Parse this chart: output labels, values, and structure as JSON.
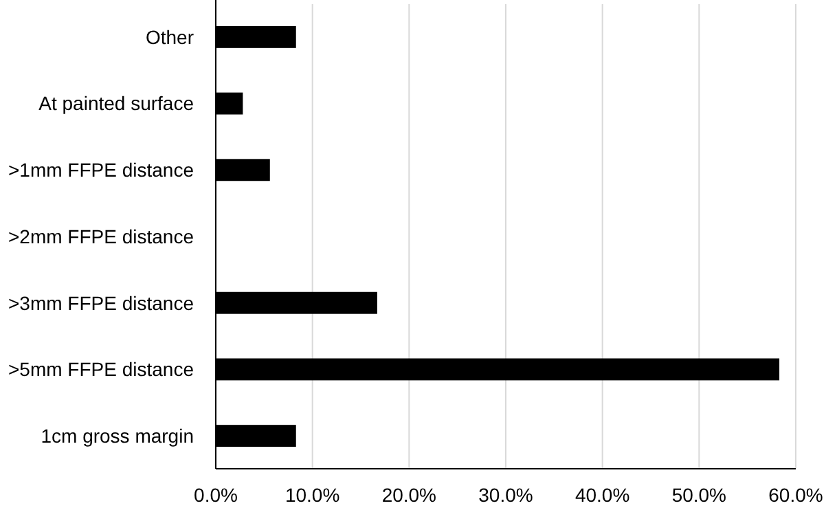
{
  "chart_data": {
    "type": "bar",
    "orientation": "horizontal",
    "categories": [
      "Other",
      "At painted surface",
      ">1mm FFPE distance",
      ">2mm FFPE distance",
      ">3mm FFPE distance",
      ">5mm FFPE distance",
      "1cm gross margin"
    ],
    "values": [
      8.3,
      2.8,
      5.6,
      0,
      16.7,
      58.3,
      8.3
    ],
    "color": "#000000",
    "xlim": [
      0,
      60
    ],
    "xticks": [
      {
        "value": 0,
        "label": "0.0%"
      },
      {
        "value": 10,
        "label": "10.0%"
      },
      {
        "value": 20,
        "label": "20.0%"
      },
      {
        "value": 30,
        "label": "30.0%"
      },
      {
        "value": 40,
        "label": "40.0%"
      },
      {
        "value": 50,
        "label": "50.0%"
      },
      {
        "value": 60,
        "label": "60.0%"
      }
    ],
    "grid": "x"
  }
}
